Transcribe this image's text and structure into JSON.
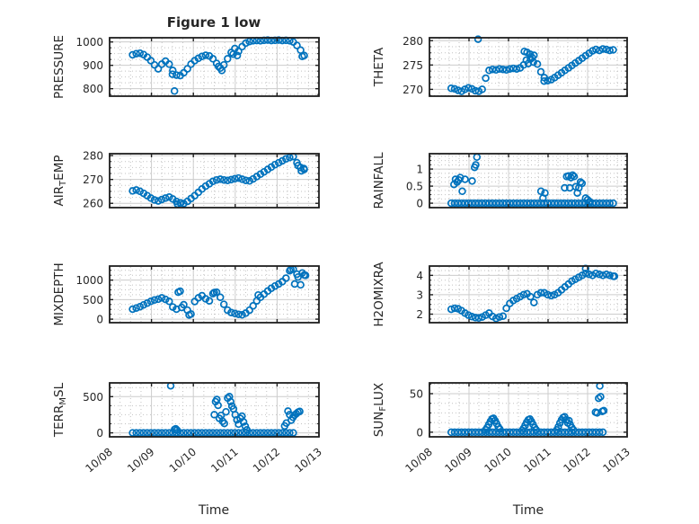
{
  "figure": {
    "title": "Figure 1 low",
    "xlabel": "Time"
  },
  "style": {
    "marker_color": "#0072BD",
    "axis_color": "#1f1f1f",
    "major_grid_color": "#cccccc",
    "minor_grid_color": "#c2c2c2",
    "text_color": "#262626",
    "background": "#ffffff"
  },
  "x_axis": {
    "xlim": [
      0,
      5
    ],
    "tick_labels": [
      "10/08",
      "10/09",
      "10/10",
      "10/11",
      "10/12",
      "10/13"
    ]
  },
  "chart_data": [
    {
      "type": "scatter",
      "name": "PRESSURE",
      "label_parts": [
        {
          "t": "PRESSURE"
        }
      ],
      "ylim": [
        768,
        1018
      ],
      "yticks": [
        800,
        900,
        1000
      ],
      "minor": 25,
      "t0": 0.55,
      "dt": 0.0872,
      "y": [
        945,
        950,
        952,
        946,
        935,
        920,
        902,
        885,
        905,
        918,
        905,
        878,
        858,
        856,
        868,
        885,
        905,
        920,
        930,
        938,
        943,
        940,
        928,
        908,
        888,
        902,
        928,
        955,
        972,
        960,
        980,
        995,
        1002,
        1005,
        1006,
        1005,
        1007,
        1008,
        1006,
        1007,
        1008,
        1006,
        1007,
        1005,
        1000,
        985,
        965,
        942
      ],
      "extra": [
        [
          1.55,
          790
        ],
        [
          1.5,
          862
        ],
        [
          2.6,
          895
        ],
        [
          2.68,
          878
        ],
        [
          2.95,
          948
        ],
        [
          3.05,
          942
        ],
        [
          4.6,
          938
        ]
      ]
    },
    {
      "type": "scatter",
      "name": "THETA",
      "label_parts": [
        {
          "t": "THETA"
        }
      ],
      "ylim": [
        268.6,
        280.6
      ],
      "yticks": [
        270,
        275,
        280
      ],
      "minor": 1.25,
      "t0": 0.55,
      "dt": 0.0872,
      "y": [
        270.2,
        270.1,
        269.8,
        269.6,
        270.0,
        270.3,
        270.1,
        269.7,
        269.6,
        270.0,
        272.3,
        273.9,
        274.1,
        274.0,
        274.2,
        274.1,
        274.0,
        274.2,
        274.3,
        274.2,
        274.4,
        275.0,
        277.6,
        276.2,
        277.0,
        275.2,
        273.6,
        272.4,
        271.8,
        272.0,
        272.4,
        272.9,
        273.4,
        273.9,
        274.4,
        274.9,
        275.4,
        275.9,
        276.4,
        276.9,
        277.4,
        277.9,
        278.2,
        278.0,
        278.3,
        278.2,
        278.0,
        278.1
      ],
      "extra": [
        [
          1.23,
          280.3
        ],
        [
          2.4,
          277.8
        ],
        [
          2.45,
          276.0
        ],
        [
          2.5,
          275.3
        ],
        [
          2.55,
          277.2
        ],
        [
          2.6,
          276.5
        ],
        [
          2.63,
          275.6
        ],
        [
          2.9,
          271.7
        ]
      ]
    },
    {
      "type": "scatter",
      "name": "AIR_TEMP",
      "label_parts": [
        {
          "t": "AIR"
        },
        {
          "t": "T",
          "sub": true
        },
        {
          "t": "EMP"
        }
      ],
      "ylim": [
        258.2,
        280.8
      ],
      "yticks": [
        260,
        270,
        280
      ],
      "minor": 2.5,
      "t0": 0.55,
      "dt": 0.0872,
      "y": [
        265.2,
        265.6,
        265.0,
        264.2,
        263.2,
        262.2,
        261.4,
        261.0,
        261.6,
        262.2,
        262.6,
        261.8,
        260.8,
        260.2,
        259.9,
        260.8,
        262.0,
        263.2,
        264.6,
        266.0,
        267.2,
        268.2,
        269.2,
        269.8,
        270.1,
        269.8,
        269.6,
        269.9,
        270.3,
        270.6,
        270.1,
        269.6,
        269.4,
        270.2,
        271.2,
        272.2,
        273.2,
        274.2,
        275.2,
        276.2,
        277.0,
        277.8,
        278.6,
        279.2,
        279.6,
        277.0,
        275.0,
        274.2
      ],
      "extra": [
        [
          1.62,
          259.7
        ],
        [
          1.7,
          260.2
        ],
        [
          4.5,
          275.8
        ],
        [
          4.58,
          273.6
        ],
        [
          4.64,
          274.6
        ]
      ]
    },
    {
      "type": "scatter",
      "name": "RAINFALL",
      "label_parts": [
        {
          "t": "RAINFALL"
        }
      ],
      "ylim": [
        -0.13,
        1.45
      ],
      "yticks": [
        0,
        0.5,
        1
      ],
      "minor": 0.125,
      "t0": 0.55,
      "dt": 0.0872,
      "y": [
        0,
        0,
        0,
        0,
        0,
        0,
        0,
        0,
        0,
        0,
        0,
        0,
        0,
        0,
        0,
        0,
        0,
        0,
        0,
        0,
        0,
        0,
        0,
        0,
        0,
        0,
        0,
        0,
        0,
        0,
        0,
        0,
        0,
        0,
        0,
        0,
        0,
        0,
        0,
        0,
        0,
        0,
        0,
        0,
        0,
        0,
        0,
        0
      ],
      "extra": [
        [
          0.62,
          0.55
        ],
        [
          0.66,
          0.7
        ],
        [
          0.7,
          0.62
        ],
        [
          0.74,
          0.68
        ],
        [
          0.78,
          0.75
        ],
        [
          0.83,
          0.35
        ],
        [
          0.9,
          0.7
        ],
        [
          1.08,
          0.65
        ],
        [
          1.14,
          1.05
        ],
        [
          1.17,
          1.12
        ],
        [
          1.2,
          1.35
        ],
        [
          2.82,
          0.35
        ],
        [
          2.87,
          0.15
        ],
        [
          2.92,
          0.3
        ],
        [
          3.42,
          0.45
        ],
        [
          3.47,
          0.78
        ],
        [
          3.52,
          0.8
        ],
        [
          3.55,
          0.45
        ],
        [
          3.58,
          0.75
        ],
        [
          3.62,
          0.82
        ],
        [
          3.66,
          0.78
        ],
        [
          3.7,
          0.48
        ],
        [
          3.74,
          0.3
        ],
        [
          3.78,
          0.45
        ],
        [
          3.82,
          0.62
        ],
        [
          3.86,
          0.58
        ],
        [
          3.95,
          0.15
        ],
        [
          4.0,
          0.1
        ],
        [
          4.05,
          0.05
        ]
      ]
    },
    {
      "type": "scatter",
      "name": "MIXDEPTH",
      "label_parts": [
        {
          "t": "MIXDEPTH"
        }
      ],
      "ylim": [
        -90,
        1360
      ],
      "yticks": [
        0,
        500,
        1000
      ],
      "minor": 125,
      "t0": 0.55,
      "dt": 0.0872,
      "y": [
        255,
        285,
        320,
        365,
        410,
        455,
        490,
        510,
        545,
        505,
        455,
        310,
        255,
        715,
        370,
        230,
        130,
        450,
        545,
        600,
        520,
        470,
        650,
        690,
        560,
        380,
        230,
        170,
        145,
        125,
        110,
        155,
        230,
        340,
        470,
        560,
        640,
        720,
        790,
        850,
        900,
        960,
        1050,
        1240,
        1280,
        1150,
        880,
        1130
      ],
      "extra": [
        [
          1.64,
          690
        ],
        [
          1.72,
          300
        ],
        [
          1.9,
          105
        ],
        [
          2.5,
          680
        ],
        [
          3.55,
          620
        ],
        [
          4.33,
          1270
        ],
        [
          4.42,
          900
        ],
        [
          4.5,
          1080
        ],
        [
          4.6,
          1180
        ],
        [
          4.68,
          1120
        ]
      ]
    },
    {
      "type": "scatter",
      "name": "H2OMIXRA",
      "label_parts": [
        {
          "t": "H2OMIXRA"
        }
      ],
      "ylim": [
        1.56,
        4.48
      ],
      "yticks": [
        2,
        3,
        4
      ],
      "minor": 0.25,
      "t0": 0.55,
      "dt": 0.0872,
      "y": [
        2.25,
        2.3,
        2.28,
        2.18,
        2.05,
        1.95,
        1.87,
        1.82,
        1.8,
        1.85,
        1.95,
        2.05,
        1.88,
        1.78,
        1.85,
        1.9,
        2.3,
        2.55,
        2.7,
        2.8,
        2.9,
        3.0,
        3.05,
        2.9,
        2.6,
        3.0,
        3.1,
        3.1,
        3.0,
        2.95,
        3.0,
        3.1,
        3.25,
        3.4,
        3.55,
        3.7,
        3.8,
        3.9,
        4.0,
        4.1,
        4.05,
        4.0,
        4.1,
        4.05,
        4.0,
        4.05,
        4.0,
        3.95
      ],
      "extra": [
        [
          3.95,
          4.35
        ],
        [
          4.68,
          3.95
        ]
      ]
    },
    {
      "type": "scatter",
      "name": "TERR_MSL",
      "label_parts": [
        {
          "t": "TERR"
        },
        {
          "t": "M",
          "sub": true
        },
        {
          "t": "SL"
        }
      ],
      "ylim": [
        -55,
        690
      ],
      "yticks": [
        0,
        500
      ],
      "minor": 125,
      "t0": 0.55,
      "dt": 0.0872,
      "y": [
        0,
        0,
        0,
        0,
        0,
        0,
        0,
        0,
        0,
        0,
        0,
        0,
        0,
        0,
        0,
        0,
        0,
        0,
        0,
        0,
        0,
        0,
        0,
        0,
        0,
        0,
        0,
        0,
        0,
        0,
        0,
        0,
        0,
        0,
        0,
        0,
        0,
        0,
        0,
        0,
        0,
        0,
        0,
        0,
        0
      ],
      "extra": [
        [
          1.46,
          650
        ],
        [
          1.55,
          45
        ],
        [
          1.58,
          55
        ],
        [
          1.61,
          38
        ],
        [
          2.5,
          250
        ],
        [
          2.53,
          430
        ],
        [
          2.56,
          460
        ],
        [
          2.59,
          380
        ],
        [
          2.62,
          200
        ],
        [
          2.66,
          240
        ],
        [
          2.7,
          160
        ],
        [
          2.74,
          130
        ],
        [
          2.78,
          290
        ],
        [
          2.82,
          480
        ],
        [
          2.86,
          500
        ],
        [
          2.89,
          430
        ],
        [
          2.92,
          370
        ],
        [
          2.96,
          330
        ],
        [
          3.0,
          250
        ],
        [
          3.04,
          180
        ],
        [
          3.08,
          120
        ],
        [
          3.12,
          200
        ],
        [
          3.16,
          230
        ],
        [
          3.2,
          150
        ],
        [
          3.24,
          90
        ],
        [
          3.28,
          40
        ],
        [
          4.18,
          95
        ],
        [
          4.22,
          135
        ],
        [
          4.26,
          300
        ],
        [
          4.3,
          250
        ],
        [
          4.34,
          175
        ],
        [
          4.38,
          215
        ],
        [
          4.42,
          245
        ],
        [
          4.46,
          265
        ],
        [
          4.5,
          285
        ],
        [
          4.54,
          295
        ]
      ]
    },
    {
      "type": "scatter",
      "name": "SUN_FLUX",
      "label_parts": [
        {
          "t": "SUN"
        },
        {
          "t": "F",
          "sub": true
        },
        {
          "t": "LUX"
        }
      ],
      "ylim": [
        -6,
        64
      ],
      "yticks": [
        0,
        50
      ],
      "minor": 12.5,
      "t0": 0.55,
      "dt": 0.0872,
      "y": [
        0,
        0,
        0,
        0,
        0,
        0,
        0,
        0,
        0,
        0,
        0,
        0,
        0,
        0,
        0,
        0,
        0,
        0,
        0,
        0,
        0,
        0,
        0,
        0,
        0,
        0,
        0,
        0,
        0,
        0,
        0,
        0,
        0,
        0,
        0,
        0,
        0,
        0,
        0,
        0,
        0,
        0,
        0,
        0,
        0
      ],
      "extra": [
        [
          1.42,
          3
        ],
        [
          1.46,
          6
        ],
        [
          1.5,
          10
        ],
        [
          1.54,
          14
        ],
        [
          1.58,
          17
        ],
        [
          1.62,
          18
        ],
        [
          1.66,
          15
        ],
        [
          1.7,
          11
        ],
        [
          1.74,
          7
        ],
        [
          1.78,
          4
        ],
        [
          2.34,
          2
        ],
        [
          2.38,
          5
        ],
        [
          2.42,
          9
        ],
        [
          2.46,
          13
        ],
        [
          2.5,
          16
        ],
        [
          2.54,
          17
        ],
        [
          2.58,
          14
        ],
        [
          2.62,
          10
        ],
        [
          2.66,
          6
        ],
        [
          2.7,
          3
        ],
        [
          3.22,
          3
        ],
        [
          3.26,
          7
        ],
        [
          3.3,
          12
        ],
        [
          3.34,
          16
        ],
        [
          3.38,
          19
        ],
        [
          3.42,
          20
        ],
        [
          3.46,
          16
        ],
        [
          3.5,
          12
        ],
        [
          3.53,
          15
        ],
        [
          3.56,
          10
        ],
        [
          3.6,
          6
        ],
        [
          3.64,
          3
        ],
        [
          4.2,
          26
        ],
        [
          4.24,
          25
        ],
        [
          4.28,
          44
        ],
        [
          4.31,
          60
        ],
        [
          4.33,
          46
        ],
        [
          4.37,
          27
        ],
        [
          4.41,
          28
        ]
      ]
    }
  ]
}
